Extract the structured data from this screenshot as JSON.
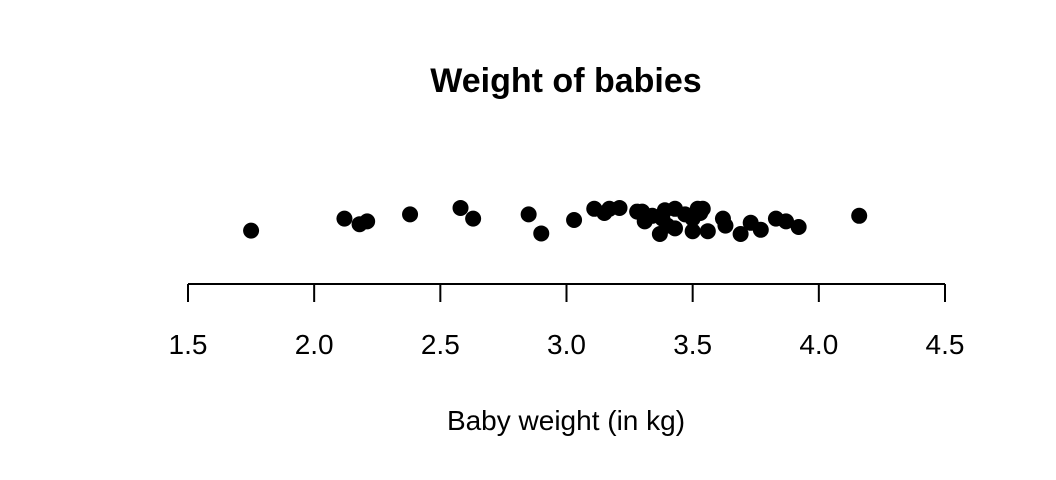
{
  "chart_data": {
    "type": "scatter",
    "title": "Weight of babies",
    "xlabel": "Baby weight (in kg)",
    "ylabel": "",
    "xlim": [
      1.5,
      4.5
    ],
    "xticks": [
      "1.5",
      "2.0",
      "2.5",
      "3.0",
      "3.5",
      "4.0",
      "4.5"
    ],
    "y_jittered": true,
    "grid": false,
    "point_color": "#000000",
    "points": [
      {
        "x": 1.75,
        "y": 0.12
      },
      {
        "x": 2.12,
        "y": 0.55
      },
      {
        "x": 2.18,
        "y": 0.35
      },
      {
        "x": 2.21,
        "y": 0.45
      },
      {
        "x": 2.38,
        "y": 0.7
      },
      {
        "x": 2.58,
        "y": 0.93
      },
      {
        "x": 2.63,
        "y": 0.55
      },
      {
        "x": 2.85,
        "y": 0.7
      },
      {
        "x": 2.9,
        "y": 0.02
      },
      {
        "x": 3.03,
        "y": 0.5
      },
      {
        "x": 3.11,
        "y": 0.9
      },
      {
        "x": 3.15,
        "y": 0.75
      },
      {
        "x": 3.17,
        "y": 0.9
      },
      {
        "x": 3.21,
        "y": 0.93
      },
      {
        "x": 3.28,
        "y": 0.8
      },
      {
        "x": 3.3,
        "y": 0.8
      },
      {
        "x": 3.31,
        "y": 0.45
      },
      {
        "x": 3.34,
        "y": 0.65
      },
      {
        "x": 3.37,
        "y": 0.0
      },
      {
        "x": 3.38,
        "y": 0.55
      },
      {
        "x": 3.39,
        "y": 0.85
      },
      {
        "x": 3.4,
        "y": 0.3
      },
      {
        "x": 3.43,
        "y": 0.2
      },
      {
        "x": 3.43,
        "y": 0.9
      },
      {
        "x": 3.47,
        "y": 0.7
      },
      {
        "x": 3.5,
        "y": 0.55
      },
      {
        "x": 3.5,
        "y": 0.1
      },
      {
        "x": 3.52,
        "y": 0.9
      },
      {
        "x": 3.53,
        "y": 0.75
      },
      {
        "x": 3.54,
        "y": 0.9
      },
      {
        "x": 3.56,
        "y": 0.1
      },
      {
        "x": 3.62,
        "y": 0.55
      },
      {
        "x": 3.63,
        "y": 0.3
      },
      {
        "x": 3.69,
        "y": 0.0
      },
      {
        "x": 3.73,
        "y": 0.4
      },
      {
        "x": 3.77,
        "y": 0.15
      },
      {
        "x": 3.83,
        "y": 0.55
      },
      {
        "x": 3.87,
        "y": 0.45
      },
      {
        "x": 3.92,
        "y": 0.25
      },
      {
        "x": 4.16,
        "y": 0.65
      }
    ]
  }
}
